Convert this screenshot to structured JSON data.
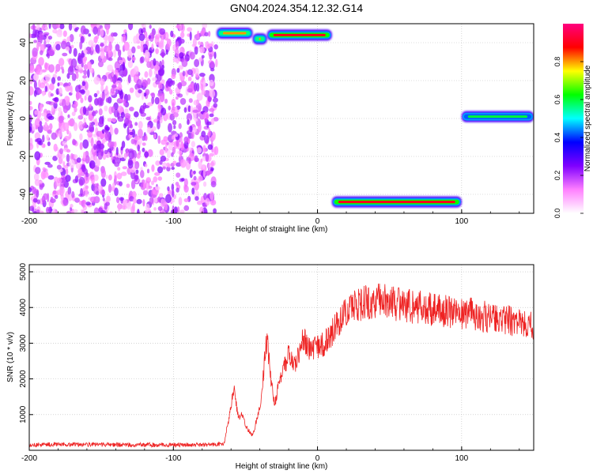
{
  "page_title": "GN04.2024.354.12.32.G14",
  "chart_data": [
    {
      "type": "heatmap",
      "title": "GN04.2024.354.12.32.G14",
      "xlabel": "Height of straight line (km)",
      "ylabel": "Frequency (Hz)",
      "xlim": [
        -200,
        150
      ],
      "ylim": [
        -50,
        50
      ],
      "x_ticks": [
        -200,
        -100,
        0,
        100
      ],
      "y_ticks": [
        -40,
        -20,
        0,
        20,
        40
      ],
      "colorbar": {
        "label": "Normalized spectral amplitude",
        "range": [
          0,
          1
        ],
        "ticks": [
          0.0,
          0.2,
          0.4,
          0.6,
          0.8
        ],
        "tick_labels": [
          "0.0",
          "0.2",
          "0.4",
          "0.6",
          "0.8"
        ],
        "colors": [
          "#ffffff",
          "#ff80ff",
          "#7f00ff",
          "#0000ff",
          "#00ffff",
          "#00ff00",
          "#ffff00",
          "#ff0000",
          "#ff007f"
        ]
      },
      "noise_region": {
        "x": [
          -200,
          -70
        ],
        "y": [
          -50,
          50
        ],
        "amplitude": [
          0.05,
          0.25
        ]
      },
      "traces": [
        {
          "x": [
            -70,
            -45
          ],
          "y": [
            45,
            45
          ],
          "amplitude": 0.8
        },
        {
          "x": [
            -45,
            -35
          ],
          "y": [
            42,
            42
          ],
          "amplitude": 0.8
        },
        {
          "x": [
            -35,
            10
          ],
          "y": [
            44,
            44
          ],
          "amplitude": 0.9
        },
        {
          "x": [
            10,
            100
          ],
          "y": [
            -44,
            -44
          ],
          "amplitude": 0.9
        },
        {
          "x": [
            100,
            150
          ],
          "y": [
            1,
            1
          ],
          "amplitude": 0.6
        }
      ],
      "grid": true
    },
    {
      "type": "line",
      "xlabel": "Height of straight line (km)",
      "ylabel": "SNR (10 * v/v)",
      "xlim": [
        -200,
        150
      ],
      "ylim": [
        0,
        5200
      ],
      "x_ticks": [
        -200,
        -100,
        0,
        100
      ],
      "y_ticks": [
        1000,
        2000,
        3000,
        4000,
        5000
      ],
      "grid": true,
      "series": [
        {
          "color": "#ee2222",
          "x": [
            -200,
            -180,
            -160,
            -140,
            -120,
            -100,
            -80,
            -65,
            -60,
            -58,
            -55,
            -52,
            -50,
            -45,
            -40,
            -35,
            -33,
            -30,
            -25,
            -20,
            -15,
            -10,
            -5,
            0,
            5,
            10,
            15,
            20,
            25,
            30,
            35,
            40,
            50,
            60,
            70,
            80,
            90,
            100,
            110,
            120,
            130,
            140,
            150
          ],
          "y": [
            150,
            170,
            160,
            155,
            150,
            150,
            155,
            170,
            1200,
            1800,
            900,
            1000,
            700,
            400,
            1200,
            3200,
            2200,
            1300,
            2100,
            2700,
            2400,
            3100,
            2800,
            2900,
            3000,
            3300,
            3600,
            3900,
            4000,
            4100,
            4150,
            4200,
            4150,
            4050,
            4000,
            3950,
            3900,
            3850,
            3800,
            3700,
            3650,
            3600,
            3500
          ]
        }
      ]
    }
  ]
}
